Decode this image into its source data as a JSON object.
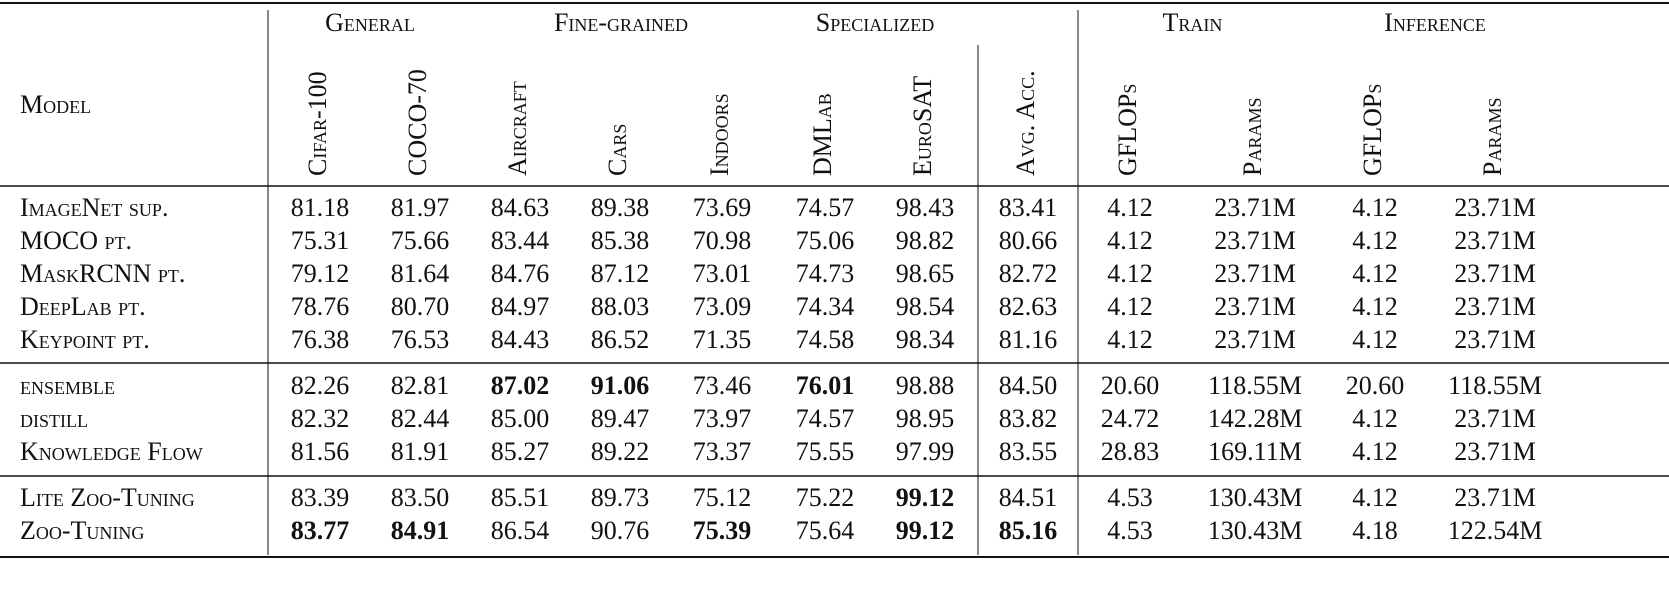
{
  "table": {
    "header": {
      "model": "Model",
      "groups": [
        {
          "label": "General",
          "columns": [
            "Cifar-100",
            "COCO-70"
          ]
        },
        {
          "label": "Fine-grained",
          "columns": [
            "Aircraft",
            "Cars",
            "Indoors"
          ]
        },
        {
          "label": "Specialized",
          "columns": [
            "DMLab",
            "EuroSAT"
          ]
        },
        {
          "columns": [
            "Avg. Acc."
          ]
        },
        {
          "label": "Train",
          "columns": [
            "GFLOPs",
            "Params"
          ]
        },
        {
          "label": "Inference",
          "columns": [
            "GFLOPs",
            "Params"
          ]
        }
      ]
    },
    "sections": [
      {
        "rows": [
          {
            "model": "ImageNet sup.",
            "cells": [
              "81.18",
              "81.97",
              "84.63",
              "89.38",
              "73.69",
              "74.57",
              "98.43",
              "83.41",
              "4.12",
              "23.71M",
              "4.12",
              "23.71M"
            ]
          },
          {
            "model": "MOCO pt.",
            "cells": [
              "75.31",
              "75.66",
              "83.44",
              "85.38",
              "70.98",
              "75.06",
              "98.82",
              "80.66",
              "4.12",
              "23.71M",
              "4.12",
              "23.71M"
            ]
          },
          {
            "model": "MaskRCNN pt.",
            "cells": [
              "79.12",
              "81.64",
              "84.76",
              "87.12",
              "73.01",
              "74.73",
              "98.65",
              "82.72",
              "4.12",
              "23.71M",
              "4.12",
              "23.71M"
            ]
          },
          {
            "model": "DeepLab pt.",
            "cells": [
              "78.76",
              "80.70",
              "84.97",
              "88.03",
              "73.09",
              "74.34",
              "98.54",
              "82.63",
              "4.12",
              "23.71M",
              "4.12",
              "23.71M"
            ]
          },
          {
            "model": "Keypoint pt.",
            "cells": [
              "76.38",
              "76.53",
              "84.43",
              "86.52",
              "71.35",
              "74.58",
              "98.34",
              "81.16",
              "4.12",
              "23.71M",
              "4.12",
              "23.71M"
            ]
          }
        ]
      },
      {
        "rows": [
          {
            "model": "ensemble",
            "cells": [
              "82.26",
              "82.81",
              {
                "text": "87.02",
                "bold": true
              },
              {
                "text": "91.06",
                "bold": true
              },
              "73.46",
              {
                "text": "76.01",
                "bold": true
              },
              "98.88",
              "84.50",
              "20.60",
              "118.55M",
              "20.60",
              "118.55M"
            ]
          },
          {
            "model": "distill",
            "cells": [
              "82.32",
              "82.44",
              "85.00",
              "89.47",
              "73.97",
              "74.57",
              "98.95",
              "83.82",
              "24.72",
              "142.28M",
              "4.12",
              "23.71M"
            ]
          },
          {
            "model": "Knowledge Flow",
            "cells": [
              "81.56",
              "81.91",
              "85.27",
              "89.22",
              "73.37",
              "75.55",
              "97.99",
              "83.55",
              "28.83",
              "169.11M",
              "4.12",
              "23.71M"
            ]
          }
        ]
      },
      {
        "rows": [
          {
            "model": "Lite Zoo-Tuning",
            "cells": [
              "83.39",
              "83.50",
              "85.51",
              "89.73",
              "75.12",
              "75.22",
              {
                "text": "99.12",
                "bold": true
              },
              "84.51",
              "4.53",
              "130.43M",
              "4.12",
              "23.71M"
            ]
          },
          {
            "model": "Zoo-Tuning",
            "cells": [
              {
                "text": "83.77",
                "bold": true
              },
              {
                "text": "84.91",
                "bold": true
              },
              "86.54",
              "90.76",
              {
                "text": "75.39",
                "bold": true
              },
              "75.64",
              {
                "text": "99.12",
                "bold": true
              },
              {
                "text": "85.16",
                "bold": true
              },
              "4.53",
              "130.43M",
              "4.18",
              "122.54M"
            ]
          }
        ]
      }
    ]
  }
}
